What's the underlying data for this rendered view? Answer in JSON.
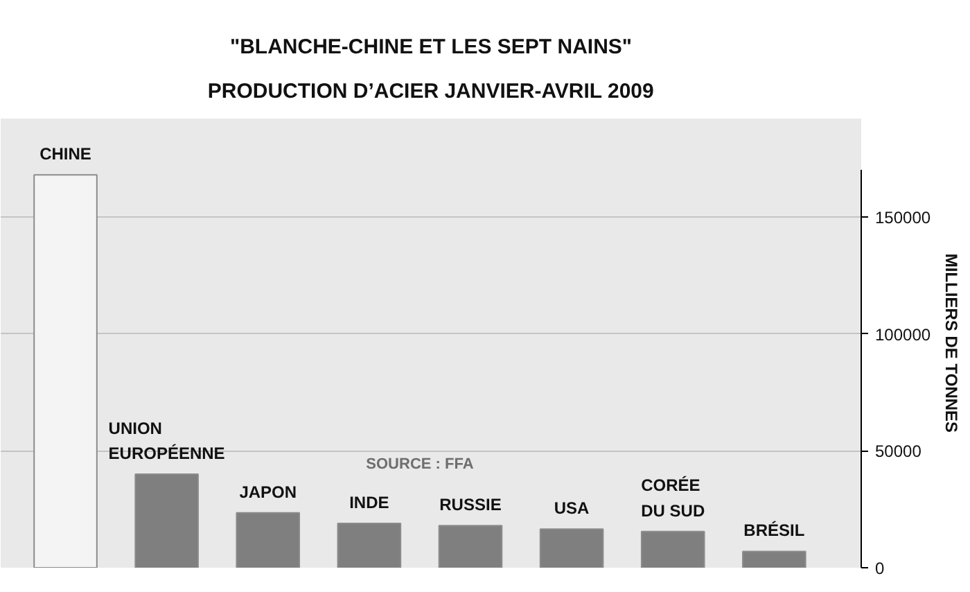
{
  "chart_data": {
    "type": "bar",
    "title": "\"BLANCHE-CHINE ET LES SEPT NAINS\"",
    "subtitle": "PRODUCTION D’ACIER JANVIER-AVRIL 2009",
    "ylabel": "MILLIERS DE TONNES",
    "categories": [
      "CHINE",
      "UNION EUROPÉENNE",
      "JAPON",
      "INDE",
      "RUSSIE",
      "USA",
      "CORÉE DU SUD",
      "BRÉSIL"
    ],
    "values": [
      168000,
      40000,
      23500,
      19000,
      18000,
      16500,
      15500,
      7000
    ],
    "colors": [
      "#f4f4f4",
      "#7f7f7f",
      "#7f7f7f",
      "#7f7f7f",
      "#7f7f7f",
      "#7f7f7f",
      "#7f7f7f",
      "#7f7f7f"
    ],
    "ylim": [
      0,
      170000
    ],
    "yticks": [
      0,
      50000,
      100000,
      150000
    ],
    "grid": "y",
    "tick_labels": "y",
    "annotations": [
      "SOURCE : FFA"
    ]
  }
}
